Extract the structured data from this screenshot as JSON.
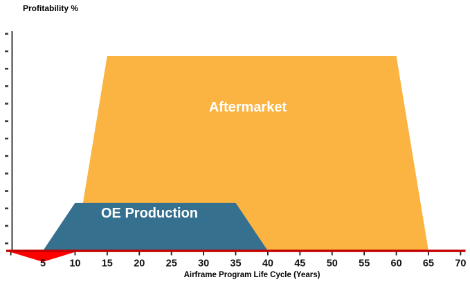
{
  "chart_data": {
    "type": "area",
    "title": "Profitability %",
    "xlabel": "Airframe Program Life Cycle (Years)",
    "ylabel": "Profitability %",
    "x_ticks": [
      5,
      10,
      15,
      20,
      25,
      30,
      35,
      40,
      45,
      50,
      55,
      60,
      65,
      70
    ],
    "xlim": [
      0,
      70.7
    ],
    "ylim": [
      -6,
      113
    ],
    "y_axis_tick_labels_shown": false,
    "y_axis_tick_count": 13,
    "grid": false,
    "legend": "labels-inside-areas",
    "series": [
      {
        "id": "aftermarket",
        "name": "Aftermarket",
        "color": "#FBB342",
        "label_color": "#FFFFFF",
        "points": [
          [
            10,
            0
          ],
          [
            15,
            100
          ],
          [
            60,
            100
          ],
          [
            65,
            0
          ]
        ]
      },
      {
        "id": "oe-production",
        "name": "OE Production",
        "color": "#35708F",
        "label_color": "#FFFFFF",
        "points": [
          [
            5,
            0
          ],
          [
            10,
            24.6
          ],
          [
            35,
            24.6
          ],
          [
            40,
            0
          ]
        ]
      },
      {
        "id": "negative-early-years",
        "color": "#FF0000",
        "points": [
          [
            -0.7,
            0
          ],
          [
            5,
            -5.7
          ],
          [
            10.6,
            0
          ]
        ]
      }
    ],
    "colors": {
      "x_axis_line": "#C40000",
      "y_axis_line": "#3A3A3A",
      "tick_marks": "#1A1A1A",
      "text": "#000000"
    }
  }
}
